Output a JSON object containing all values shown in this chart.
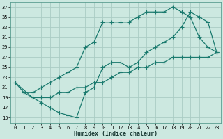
{
  "xlabel": "Humidex (Indice chaleur)",
  "bg_color": "#cce8e0",
  "grid_color": "#aaccC4",
  "line_color": "#1a7a6e",
  "xlim": [
    -0.5,
    23.5
  ],
  "ylim": [
    14,
    38
  ],
  "yticks": [
    15,
    17,
    19,
    21,
    23,
    25,
    27,
    29,
    31,
    33,
    35,
    37
  ],
  "xticks": [
    0,
    1,
    2,
    3,
    4,
    5,
    6,
    7,
    8,
    9,
    10,
    11,
    12,
    13,
    14,
    15,
    16,
    17,
    18,
    19,
    20,
    21,
    22,
    23
  ],
  "line1_x": [
    0,
    1,
    2,
    3,
    4,
    5,
    6,
    7,
    8,
    9,
    10,
    11,
    12,
    13,
    14,
    15,
    16,
    17,
    18,
    19,
    20,
    21,
    22,
    23
  ],
  "line1_y": [
    22,
    20,
    20,
    21,
    22,
    23,
    24,
    25,
    29,
    30,
    34,
    34,
    34,
    34,
    35,
    36,
    36,
    36,
    37,
    36,
    35,
    31,
    29,
    28
  ],
  "line2_x": [
    0,
    2,
    3,
    4,
    5,
    6,
    7,
    8,
    9,
    10,
    11,
    12,
    13,
    14,
    15,
    16,
    17,
    18,
    19,
    20,
    21,
    22,
    23
  ],
  "line2_y": [
    22,
    19,
    18,
    17,
    16,
    15.5,
    15,
    20,
    21,
    25,
    26,
    26,
    25,
    26,
    28,
    29,
    30,
    31,
    33,
    36,
    35,
    34,
    28
  ],
  "line3_x": [
    1,
    2,
    3,
    4,
    5,
    6,
    7,
    8,
    9,
    10,
    11,
    12,
    13,
    14,
    15,
    16,
    17,
    18,
    19,
    20,
    21,
    22,
    23
  ],
  "line3_y": [
    20,
    19,
    19,
    19,
    20,
    20,
    21,
    21,
    22,
    22,
    23,
    24,
    24,
    25,
    25,
    26,
    26,
    27,
    27,
    27,
    27,
    27,
    28
  ]
}
